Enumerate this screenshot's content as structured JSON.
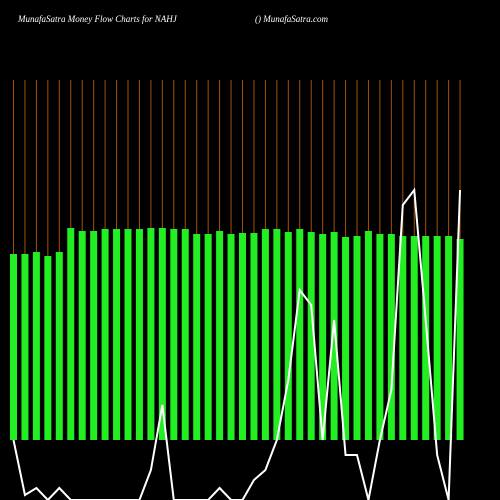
{
  "chart_data": {
    "type": "bar",
    "title": "MunafaSatra  Money Flow  Charts for NAHJ",
    "subtitle": "() MunafaSatra.com",
    "grid": true,
    "grid_color": "#a0520a",
    "values": [
      186,
      186,
      188,
      184,
      188,
      212,
      209,
      209,
      211,
      211,
      211,
      211,
      212,
      212,
      211,
      211,
      206,
      206,
      209,
      206,
      207,
      207,
      211,
      211,
      208,
      211,
      208,
      206,
      208,
      203,
      204,
      209,
      206,
      206,
      204,
      204,
      204,
      204,
      204,
      201
    ],
    "color": "#22ee22",
    "line": {
      "color": "#ffffff",
      "values": [
        0,
        -55,
        -48,
        -60,
        -48,
        -60,
        -60,
        -60,
        -60,
        -60,
        -60,
        -60,
        -30,
        35,
        -60,
        -60,
        -60,
        -60,
        -48,
        -60,
        -60,
        -40,
        -30,
        0,
        60,
        150,
        135,
        0,
        120,
        -15,
        -15,
        -60,
        0,
        50,
        235,
        250,
        120,
        -15,
        -60,
        250
      ]
    }
  }
}
